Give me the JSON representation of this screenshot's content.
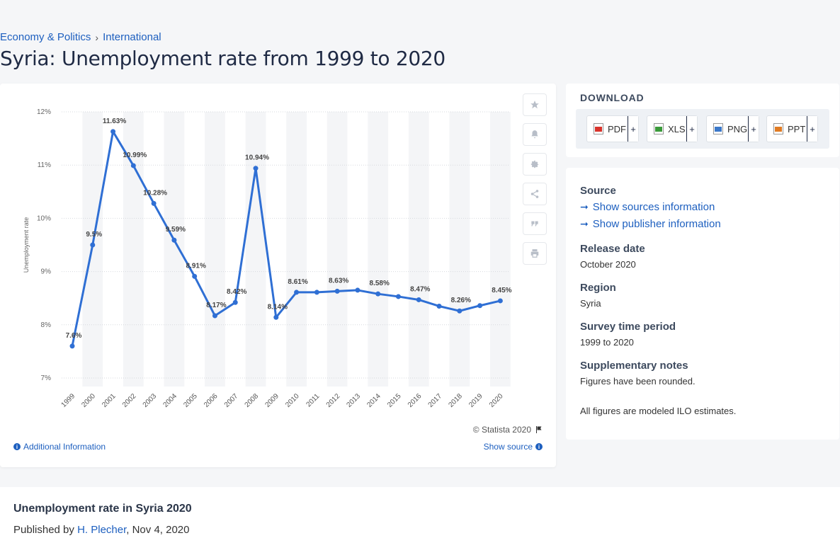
{
  "breadcrumb": {
    "item1": "Economy & Politics",
    "sep": "›",
    "item2": "International"
  },
  "page_title": "Syria: Unemployment rate from 1999 to 2020",
  "chart_data": {
    "type": "line",
    "categories": [
      "1999",
      "2000",
      "2001",
      "2002",
      "2003",
      "2004",
      "2005",
      "2006",
      "2007",
      "2008",
      "2009",
      "2010",
      "2011",
      "2012",
      "2013",
      "2014",
      "2015",
      "2016",
      "2017",
      "2018",
      "2019",
      "2020"
    ],
    "values": [
      7.6,
      9.5,
      11.63,
      10.99,
      10.28,
      9.59,
      8.91,
      8.17,
      8.42,
      10.94,
      8.14,
      8.61,
      8.61,
      8.63,
      8.65,
      8.58,
      8.53,
      8.47,
      8.35,
      8.26,
      8.36,
      8.45
    ],
    "data_labels": [
      "7.6%",
      "9.5%",
      "11.63%",
      "10.99%",
      "10.28%",
      "9.59%",
      "8.91%",
      "8.17%",
      "8.42%",
      "10.94%",
      "8.14%",
      "8.61%",
      "",
      "8.63%",
      "",
      "8.58%",
      "",
      "8.47%",
      "",
      "8.26%",
      "",
      "8.45%"
    ],
    "ylabel": "Unemployment rate",
    "yticks": [
      "7%",
      "8%",
      "9%",
      "10%",
      "11%",
      "12%"
    ],
    "ylim": [
      7,
      12
    ],
    "grid": true,
    "line_color": "#2f6fd4"
  },
  "chart": {
    "copyright": "© Statista 2020",
    "additional_info": "Additional Information",
    "show_source": "Show source"
  },
  "download": {
    "title": "DOWNLOAD",
    "pdf": "PDF",
    "xls": "XLS",
    "png": "PNG",
    "ppt": "PPT",
    "plus": "+"
  },
  "meta": {
    "source_h": "Source",
    "sources_link": "Show sources information",
    "publisher_link": "Show publisher information",
    "release_h": "Release date",
    "release_v": "October 2020",
    "region_h": "Region",
    "region_v": "Syria",
    "period_h": "Survey time period",
    "period_v": "1999 to 2020",
    "notes_h": "Supplementary notes",
    "notes_v": "Figures have been rounded.",
    "notes_v2": "All figures are modeled ILO estimates."
  },
  "statistic": {
    "title": "Unemployment rate in Syria 2020",
    "published_by": "Published by",
    "author": "H. Plecher",
    "date": ", Nov 4, 2020"
  }
}
